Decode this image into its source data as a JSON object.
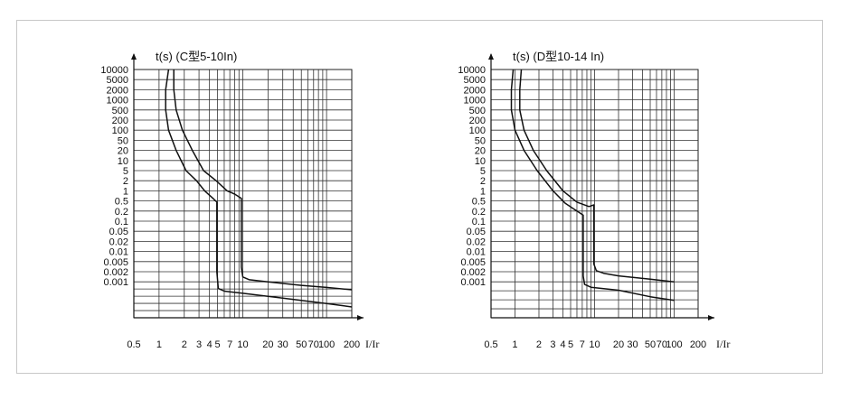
{
  "chart_data": [
    {
      "type": "line",
      "title": "t(s) (C型5-10In)",
      "xlabel": "I/Ir",
      "ylabel": "t(s)",
      "x_scale": "log",
      "y_scale": "log",
      "xlim": [
        0.5,
        200
      ],
      "ylim": [
        0.0001,
        10000
      ],
      "grid": true,
      "x_ticks": [
        "0.5",
        "1",
        "2",
        "3",
        "4",
        "5",
        "7",
        "10",
        "20",
        "30",
        "50",
        "70",
        "100",
        "200"
      ],
      "y_ticks": [
        "10000",
        "5000",
        "2000",
        "1000",
        "500",
        "200",
        "100",
        "50",
        "20",
        "10",
        "5",
        "2",
        "1",
        "0.5",
        "0.2",
        "0.1",
        "0.05",
        "0.02",
        "0.01",
        "0.005",
        "0.002",
        "0.001"
      ],
      "series": [
        {
          "x": [
            1.3,
            1.2,
            1.2,
            1.3,
            1.6,
            2.1,
            2.8,
            3.5,
            4.4,
            4.9,
            4.9,
            5.1,
            6,
            10,
            30,
            100,
            200
          ],
          "y": [
            10000,
            2000,
            500,
            100,
            20,
            5,
            2,
            1,
            0.6,
            0.45,
            0.002,
            0.00065,
            0.00055,
            0.00048,
            0.00035,
            0.00025,
            0.0002
          ]
        },
        {
          "x": [
            1.5,
            1.5,
            1.6,
            1.9,
            2.5,
            3.4,
            4.8,
            6.5,
            8,
            9.6,
            9.6,
            10,
            12,
            20,
            50,
            100,
            200
          ],
          "y": [
            10000,
            2000,
            500,
            100,
            20,
            5,
            2,
            1,
            0.8,
            0.6,
            0.003,
            0.0014,
            0.00115,
            0.001,
            0.0008,
            0.0007,
            0.0006
          ]
        }
      ]
    },
    {
      "type": "line",
      "title": "t(s) (D型10-14 In)",
      "xlabel": "I/Ir",
      "ylabel": "t(s)",
      "x_scale": "log",
      "y_scale": "log",
      "xlim": [
        0.5,
        200
      ],
      "ylim": [
        0.0005,
        10000
      ],
      "grid": true,
      "x_ticks": [
        "0.5",
        "1",
        "2",
        "3",
        "4",
        "5",
        "7",
        "10",
        "20",
        "30",
        "50",
        "70",
        "100",
        "200"
      ],
      "y_ticks": [
        "10000",
        "5000",
        "2000",
        "1000",
        "500",
        "200",
        "100",
        "50",
        "20",
        "10",
        "5",
        "2",
        "1",
        "0.5",
        "0.2",
        "0.1",
        "0.05",
        "0.02",
        "0.01",
        "0.005",
        "0.002",
        "0.001"
      ],
      "series": [
        {
          "x": [
            0.95,
            0.9,
            0.9,
            1,
            1.3,
            1.9,
            3,
            4.3,
            6,
            7.2,
            7.2,
            7.5,
            9,
            20,
            50,
            100
          ],
          "y": [
            10000,
            2000,
            500,
            100,
            20,
            5,
            1,
            0.4,
            0.2,
            0.15,
            0.0015,
            0.00095,
            0.0009,
            0.00085,
            0.00075,
            0.0007
          ]
        },
        {
          "x": [
            1.2,
            1.15,
            1.15,
            1.3,
            1.7,
            2.5,
            4,
            6,
            8.5,
            9.8,
            9.8,
            10.5,
            13,
            20,
            50,
            100
          ],
          "y": [
            10000,
            2000,
            500,
            100,
            20,
            5,
            1,
            0.45,
            0.3,
            0.35,
            0.004,
            0.0022,
            0.0018,
            0.0015,
            0.0012,
            0.001
          ]
        }
      ]
    }
  ]
}
